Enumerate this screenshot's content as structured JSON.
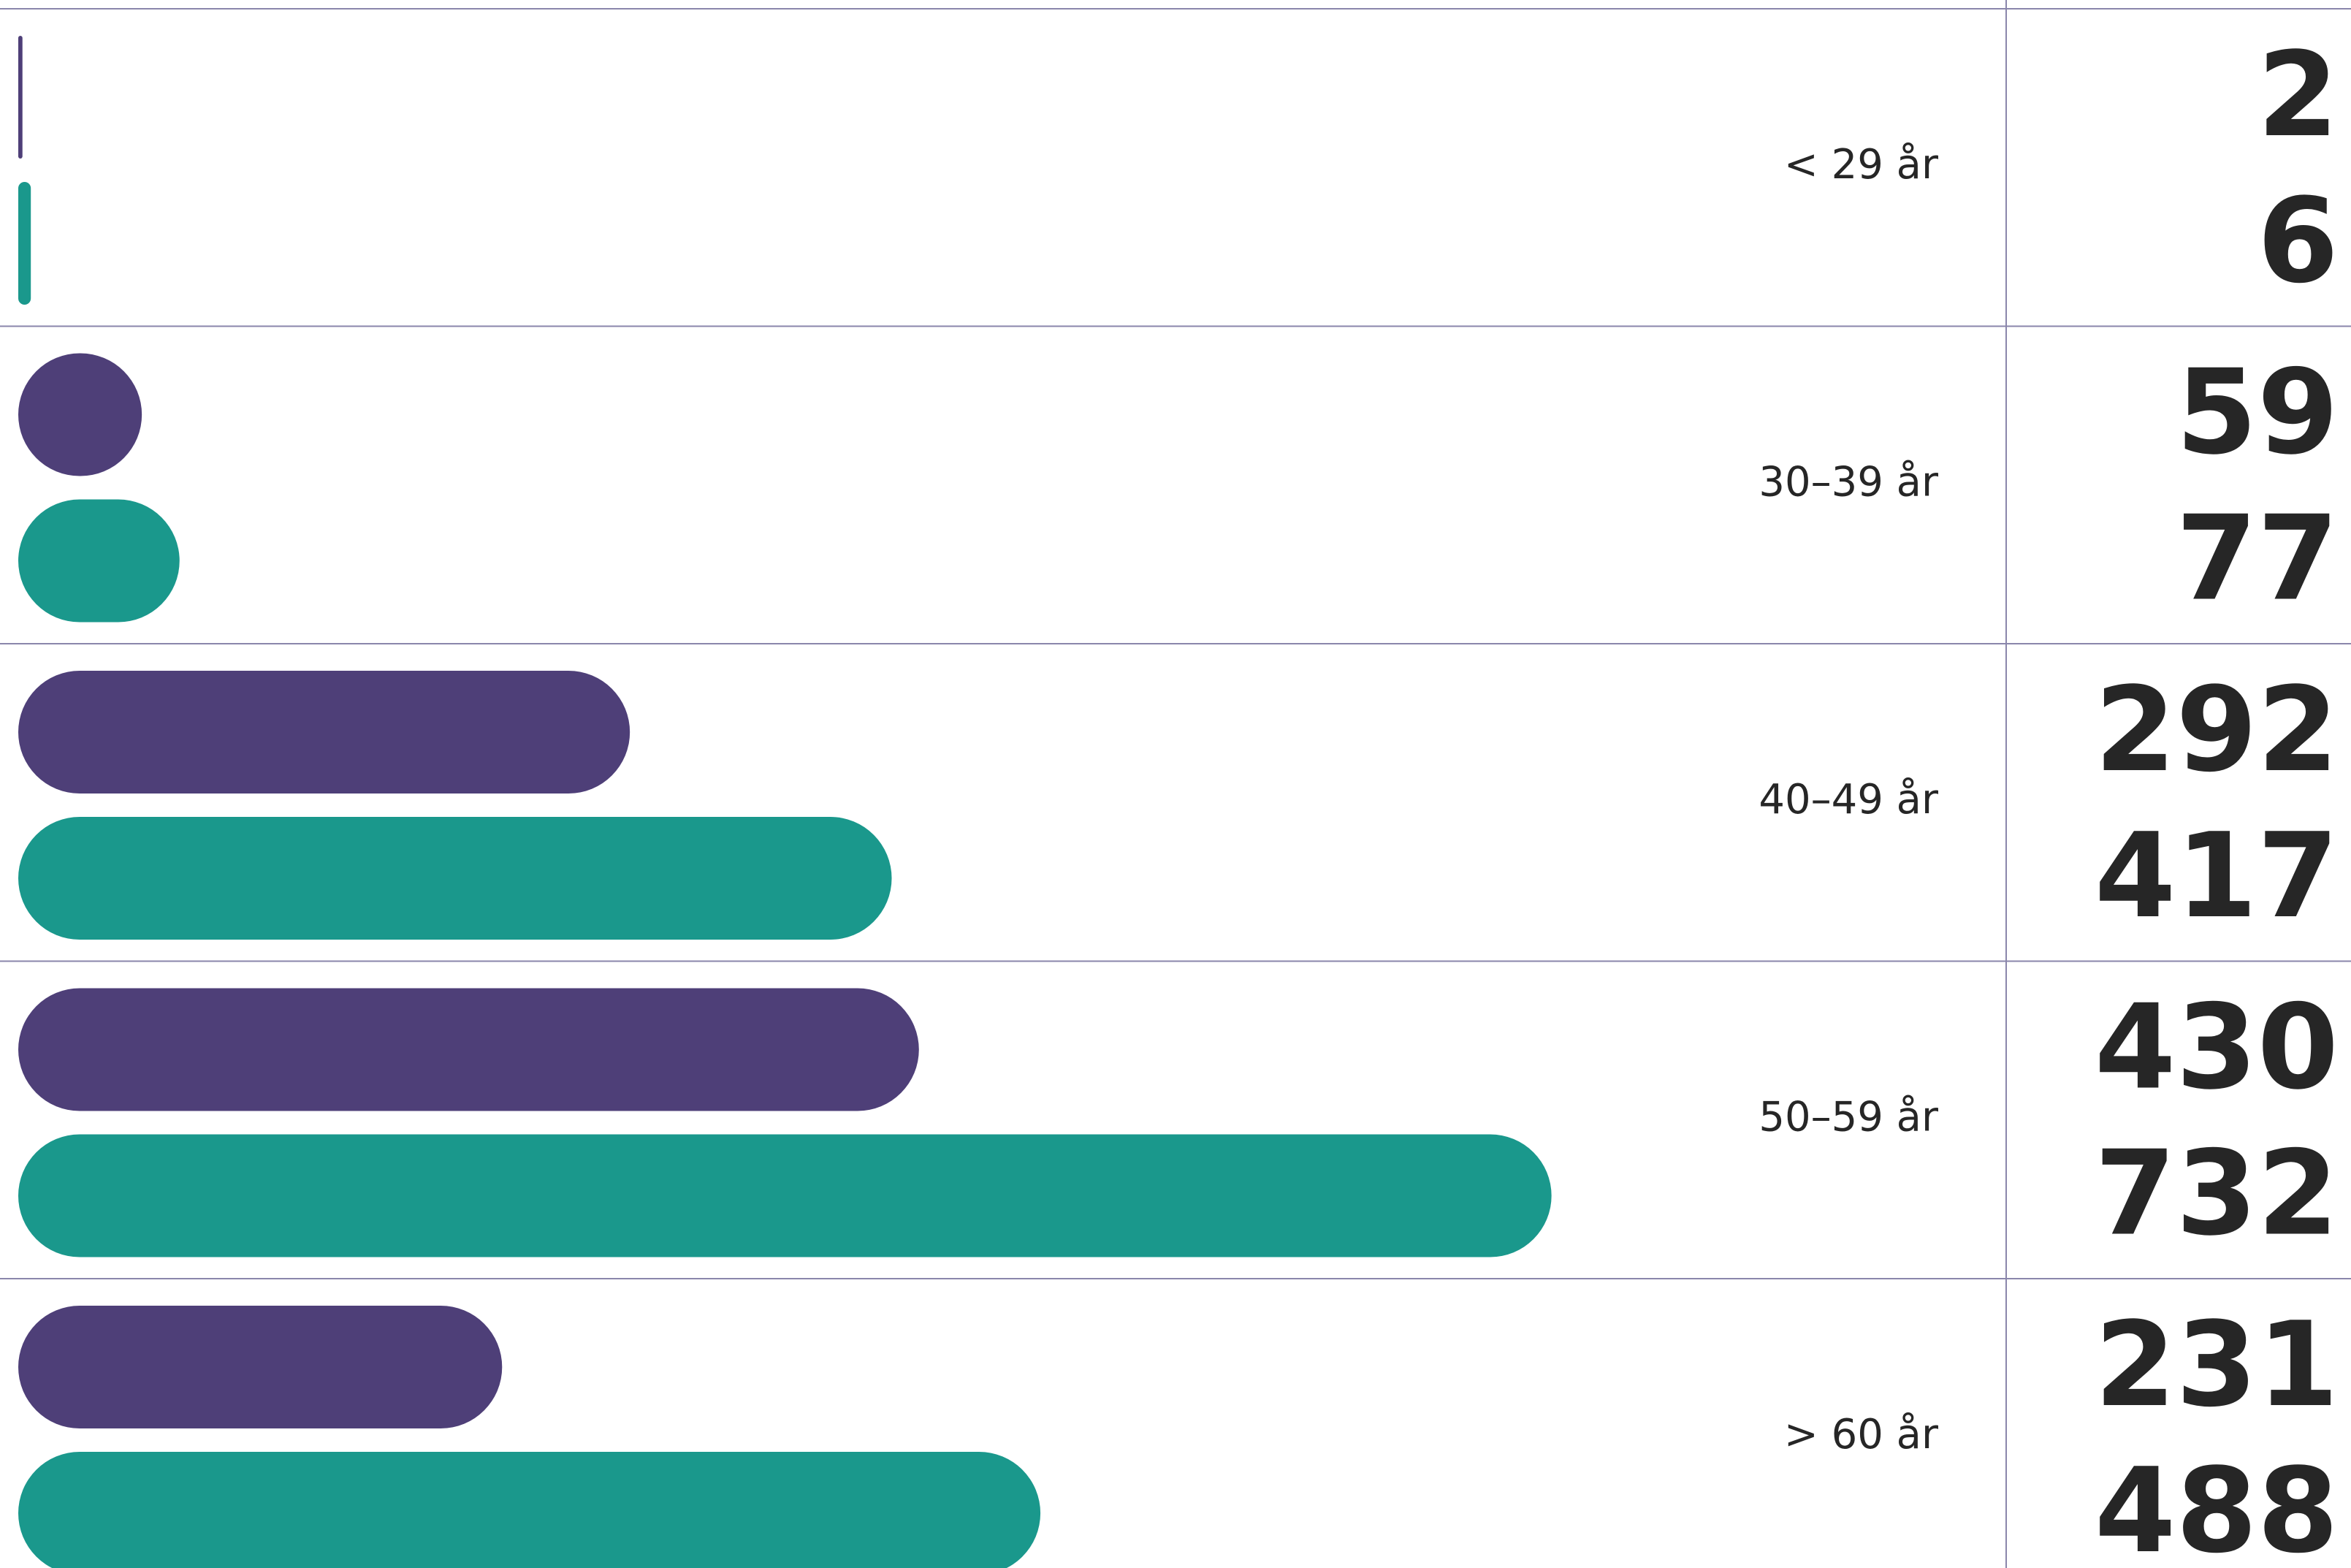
{
  "chart_data": {
    "type": "bar",
    "orientation": "horizontal",
    "categories": [
      "< 29 år",
      "30–39 år",
      "40–49 år",
      "50–59 år",
      "> 60 år"
    ],
    "series": [
      {
        "color": "#4e3f78",
        "values": [
          2,
          59,
          292,
          430,
          231
        ]
      },
      {
        "color": "#1a988c",
        "values": [
          6,
          77,
          417,
          732,
          488
        ]
      }
    ]
  }
}
